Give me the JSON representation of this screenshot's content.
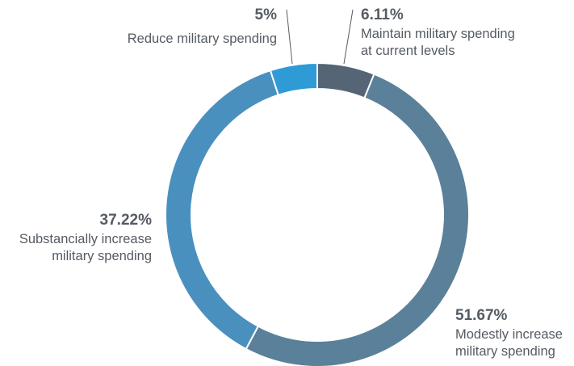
{
  "chart_data": {
    "type": "pie",
    "donut": true,
    "slices": [
      {
        "value": 6.11,
        "percent_label": "6.11%",
        "label_lines": [
          "Maintain military spending",
          "at current levels"
        ],
        "color": "#556575"
      },
      {
        "value": 51.67,
        "percent_label": "51.67%",
        "label_lines": [
          "Modestly increase",
          "military spending"
        ],
        "color": "#5b8099"
      },
      {
        "value": 37.22,
        "percent_label": "37.22%",
        "label_lines": [
          "Substancially increase",
          "military spending"
        ],
        "color": "#4a90bf"
      },
      {
        "value": 5,
        "percent_label": "5%",
        "label_lines": [
          "Reduce military spending"
        ],
        "color": "#2e9bd6"
      }
    ]
  }
}
